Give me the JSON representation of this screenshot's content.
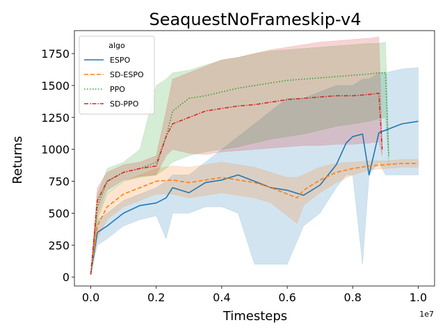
{
  "chart_data": {
    "type": "line",
    "title": "SeaquestNoFrameskip-v4",
    "xlabel": "Timesteps",
    "ylabel": "Returns",
    "x_offset_text": "1e7",
    "xlim": [
      -0.05,
      1.05
    ],
    "ylim": [
      -70,
      1930
    ],
    "xticks": [
      0.0,
      0.2,
      0.4,
      0.6,
      0.8,
      1.0
    ],
    "xtick_labels": [
      "0.0",
      "0.2",
      "0.4",
      "0.6",
      "0.8",
      "1.0"
    ],
    "yticks": [
      0,
      250,
      500,
      750,
      1000,
      1250,
      1500,
      1750
    ],
    "ytick_labels": [
      "0",
      "250",
      "500",
      "750",
      "1000",
      "1250",
      "1500",
      "1750"
    ],
    "grid": false,
    "legend": {
      "title": "algo",
      "placement": "top-left"
    },
    "series": [
      {
        "name": "ESPO",
        "color": "#1f77b4",
        "dash": "solid",
        "x": [
          0.0,
          0.02,
          0.05,
          0.1,
          0.15,
          0.2,
          0.23,
          0.25,
          0.3,
          0.35,
          0.4,
          0.45,
          0.5,
          0.55,
          0.6,
          0.65,
          0.7,
          0.75,
          0.78,
          0.8,
          0.83,
          0.85,
          0.88,
          0.9,
          0.95,
          1.0
        ],
        "y": [
          20,
          350,
          400,
          500,
          560,
          580,
          620,
          700,
          660,
          740,
          760,
          800,
          750,
          700,
          680,
          640,
          720,
          880,
          1050,
          1100,
          1120,
          800,
          1130,
          1150,
          1200,
          1220
        ],
        "lower": [
          20,
          250,
          300,
          400,
          450,
          480,
          300,
          500,
          500,
          550,
          550,
          500,
          100,
          100,
          100,
          400,
          500,
          700,
          800,
          800,
          100,
          800,
          900,
          800,
          800,
          800
        ],
        "upper": [
          20,
          450,
          500,
          600,
          650,
          700,
          750,
          800,
          800,
          900,
          1000,
          1100,
          1200,
          1300,
          1400,
          1400,
          1450,
          1500,
          1500,
          1500,
          1550,
          1550,
          1600,
          1600,
          1630,
          1640
        ]
      },
      {
        "name": "SD-ESPO",
        "color": "#ff7f0e",
        "dash": "dashed",
        "x": [
          0.0,
          0.02,
          0.05,
          0.1,
          0.15,
          0.2,
          0.25,
          0.3,
          0.35,
          0.4,
          0.45,
          0.5,
          0.55,
          0.6,
          0.63,
          0.65,
          0.7,
          0.75,
          0.8,
          0.85,
          0.9,
          0.95,
          1.0
        ],
        "y": [
          20,
          400,
          550,
          650,
          700,
          750,
          760,
          740,
          760,
          780,
          760,
          740,
          700,
          650,
          620,
          680,
          760,
          820,
          850,
          870,
          880,
          890,
          890
        ],
        "lower": [
          20,
          300,
          450,
          550,
          600,
          650,
          650,
          620,
          640,
          660,
          640,
          620,
          580,
          480,
          420,
          560,
          660,
          740,
          800,
          840,
          850,
          860,
          860
        ],
        "upper": [
          20,
          500,
          650,
          750,
          800,
          850,
          870,
          860,
          880,
          900,
          880,
          860,
          820,
          780,
          780,
          800,
          860,
          890,
          900,
          910,
          910,
          920,
          920
        ]
      },
      {
        "name": "PPO",
        "color": "#2ca02c",
        "dash": "dotted",
        "x": [
          0.0,
          0.02,
          0.05,
          0.1,
          0.15,
          0.2,
          0.23,
          0.25,
          0.3,
          0.35,
          0.4,
          0.45,
          0.5,
          0.55,
          0.6,
          0.65,
          0.7,
          0.75,
          0.8,
          0.85,
          0.88,
          0.9,
          0.91
        ],
        "y": [
          20,
          550,
          750,
          820,
          850,
          900,
          1100,
          1300,
          1400,
          1420,
          1450,
          1480,
          1500,
          1520,
          1540,
          1550,
          1560,
          1570,
          1580,
          1590,
          1600,
          1600,
          950
        ],
        "lower": [
          20,
          450,
          650,
          750,
          780,
          800,
          850,
          900,
          950,
          980,
          1000,
          1020,
          1050,
          1080,
          1100,
          1120,
          1150,
          1180,
          1200,
          1220,
          1240,
          1250,
          900
        ],
        "upper": [
          20,
          650,
          850,
          900,
          1000,
          1500,
          1550,
          1600,
          1620,
          1660,
          1700,
          1720,
          1750,
          1770,
          1780,
          1790,
          1800,
          1810,
          1820,
          1830,
          1830,
          1840,
          1000
        ]
      },
      {
        "name": "SD-PPO",
        "color": "#d62728",
        "dash": "dashdot",
        "x": [
          0.0,
          0.02,
          0.05,
          0.1,
          0.15,
          0.2,
          0.23,
          0.25,
          0.3,
          0.35,
          0.4,
          0.45,
          0.5,
          0.55,
          0.6,
          0.65,
          0.7,
          0.75,
          0.8,
          0.85,
          0.88,
          0.89
        ],
        "y": [
          20,
          600,
          750,
          820,
          850,
          870,
          1100,
          1200,
          1250,
          1300,
          1320,
          1340,
          1350,
          1370,
          1390,
          1400,
          1410,
          1420,
          1420,
          1430,
          1440,
          1000
        ],
        "lower": [
          20,
          500,
          680,
          760,
          790,
          800,
          950,
          1000,
          970,
          960,
          980,
          990,
          1000,
          1010,
          1020,
          1030,
          1030,
          1040,
          1040,
          1050,
          1060,
          950
        ],
        "upper": [
          20,
          700,
          820,
          880,
          900,
          950,
          1300,
          1550,
          1600,
          1650,
          1700,
          1720,
          1750,
          1780,
          1800,
          1820,
          1840,
          1850,
          1860,
          1870,
          1880,
          1050
        ]
      }
    ]
  }
}
